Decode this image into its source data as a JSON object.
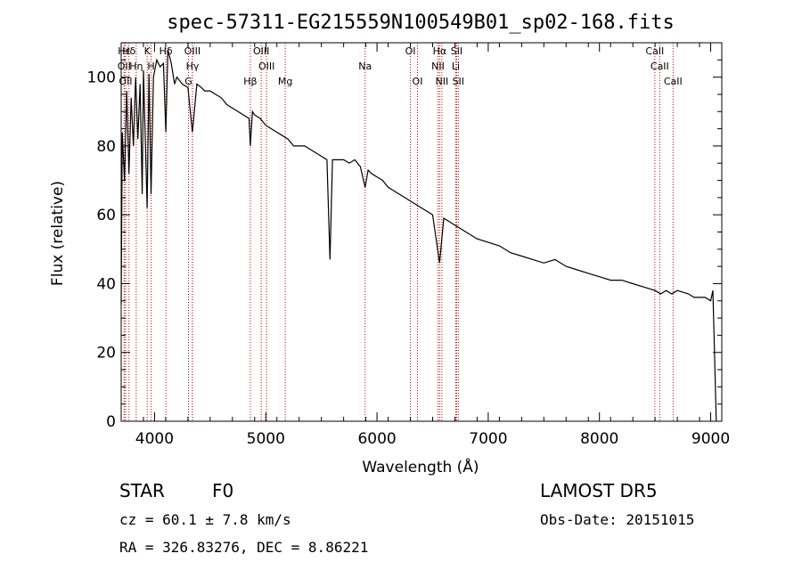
{
  "chart_data": {
    "type": "line",
    "title": "spec-57311-EG215559N100549B01_sp02-168.fits",
    "xlabel": "Wavelength (Å)",
    "ylabel": "Flux (relative)",
    "xlim": [
      3700,
      9100
    ],
    "ylim": [
      0,
      110
    ],
    "xticks": [
      4000,
      5000,
      6000,
      7000,
      8000,
      9000
    ],
    "yticks": [
      0,
      20,
      40,
      60,
      80,
      100
    ],
    "grid": false,
    "series": [
      {
        "x": [
          3700,
          3710,
          3730,
          3750,
          3770,
          3790,
          3810,
          3830,
          3850,
          3870,
          3889,
          3900,
          3933,
          3950,
          3968,
          3990,
          4020,
          4050,
          4080,
          4101,
          4120,
          4150,
          4180,
          4200,
          4250,
          4300,
          4340,
          4380,
          4420,
          4450,
          4500,
          4550,
          4600,
          4650,
          4700,
          4750,
          4800,
          4850,
          4861,
          4880,
          4900,
          4950,
          5000,
          5050,
          5100,
          5150,
          5200,
          5250,
          5300,
          5350,
          5400,
          5450,
          5500,
          5550,
          5577,
          5600,
          5650,
          5700,
          5750,
          5800,
          5850,
          5893,
          5920,
          5950,
          6000,
          6050,
          6100,
          6150,
          6200,
          6250,
          6300,
          6350,
          6400,
          6450,
          6500,
          6563,
          6600,
          6650,
          6700,
          6750,
          6800,
          6900,
          7000,
          7100,
          7200,
          7300,
          7400,
          7500,
          7600,
          7700,
          7800,
          7900,
          8000,
          8100,
          8200,
          8300,
          8400,
          8500,
          8550,
          8600,
          8650,
          8700,
          8800,
          8850,
          8900,
          8950,
          9000,
          9020,
          9050
        ],
        "y": [
          34,
          84,
          70,
          96,
          72,
          94,
          80,
          100,
          82,
          98,
          66,
          102,
          62,
          101,
          66,
          100,
          105,
          103,
          104,
          84,
          108,
          104,
          98,
          100,
          98,
          97,
          84,
          98,
          97,
          96,
          96,
          95,
          94,
          92,
          91,
          90,
          89,
          88,
          80,
          90,
          89,
          88,
          86,
          85,
          84,
          83,
          82,
          80,
          80,
          80,
          79,
          78,
          77,
          76,
          47,
          76,
          76,
          76,
          75,
          76,
          74,
          68,
          73,
          72,
          71,
          70,
          68,
          67,
          66,
          65,
          64,
          63,
          62,
          61,
          60,
          46,
          59,
          58,
          57,
          56,
          55,
          53,
          52,
          51,
          49,
          48,
          47,
          46,
          47,
          45,
          44,
          43,
          42,
          41,
          41,
          40,
          39,
          38,
          37,
          38,
          37,
          38,
          37,
          36,
          36,
          36,
          35,
          38,
          0
        ]
      }
    ],
    "lines": [
      {
        "label": "Hε",
        "x": 3727,
        "row": 1
      },
      {
        "label": "OII",
        "x": 3727,
        "row": 2
      },
      {
        "label": "OII",
        "x": 3740,
        "row": 3
      },
      {
        "label": "Hδ",
        "x": 3770,
        "row": 1
      },
      {
        "label": "Hη",
        "x": 3835,
        "row": 2
      },
      {
        "label": "K",
        "x": 3934,
        "row": 1
      },
      {
        "label": "H",
        "x": 3969,
        "row": 2
      },
      {
        "label": "Hδ",
        "x": 4102,
        "row": 1
      },
      {
        "label": "G",
        "x": 4305,
        "row": 3
      },
      {
        "label": "OIII",
        "x": 4340,
        "row": 1
      },
      {
        "label": "Hγ",
        "x": 4341,
        "row": 2
      },
      {
        "label": "Hβ",
        "x": 4861,
        "row": 3
      },
      {
        "label": "OIII",
        "x": 4959,
        "row": 1
      },
      {
        "label": "OIII",
        "x": 5007,
        "row": 2
      },
      {
        "label": "Mg",
        "x": 5175,
        "row": 3
      },
      {
        "label": "Na",
        "x": 5893,
        "row": 2
      },
      {
        "label": "OI",
        "x": 6300,
        "row": 1
      },
      {
        "label": "OI",
        "x": 6364,
        "row": 3
      },
      {
        "label": "Hα",
        "x": 6563,
        "row": 1
      },
      {
        "label": "NII",
        "x": 6548,
        "row": 2
      },
      {
        "label": "NII",
        "x": 6583,
        "row": 3
      },
      {
        "label": "SII",
        "x": 6716,
        "row": 1
      },
      {
        "label": "Li",
        "x": 6708,
        "row": 2
      },
      {
        "label": "SII",
        "x": 6731,
        "row": 3
      },
      {
        "label": "CaII",
        "x": 8498,
        "row": 1
      },
      {
        "label": "CaII",
        "x": 8542,
        "row": 2
      },
      {
        "label": "CaII",
        "x": 8662,
        "row": 3
      }
    ],
    "annotations": {
      "class_label": "STAR",
      "subclass_label": "F0",
      "survey": "LAMOST DR5",
      "redshift": "cz = 60.1 ± 7.8 km/s",
      "obs_date": "Obs-Date: 20151015",
      "coords": "RA = 326.83276, DEC =   8.86221"
    }
  }
}
